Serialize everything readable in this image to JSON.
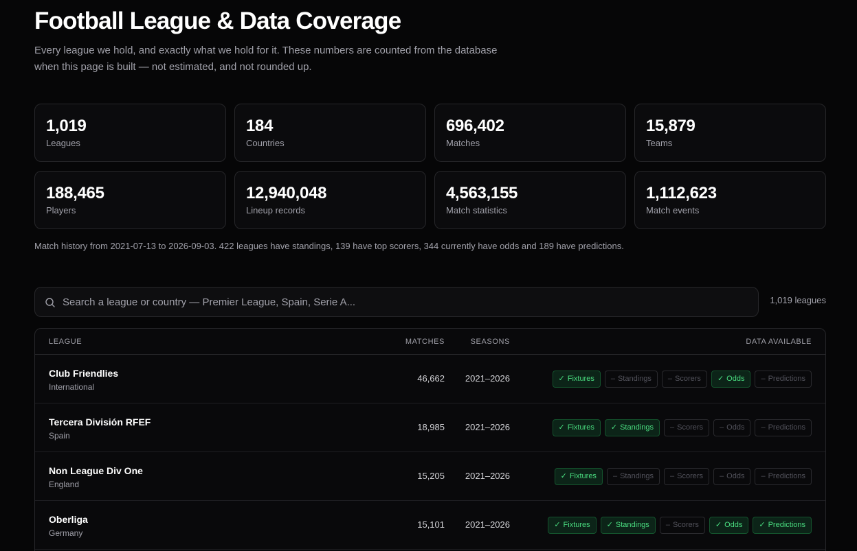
{
  "header": {
    "title": "Football League & Data Coverage",
    "subtitle": "Every league we hold, and exactly what we hold for it. These numbers are counted from the database when this page is built — not estimated, and not rounded up."
  },
  "stats": [
    {
      "value": "1,019",
      "label": "Leagues"
    },
    {
      "value": "184",
      "label": "Countries"
    },
    {
      "value": "696,402",
      "label": "Matches"
    },
    {
      "value": "15,879",
      "label": "Teams"
    },
    {
      "value": "188,465",
      "label": "Players"
    },
    {
      "value": "12,940,048",
      "label": "Lineup records"
    },
    {
      "value": "4,563,155",
      "label": "Match statistics"
    },
    {
      "value": "1,112,623",
      "label": "Match events"
    }
  ],
  "summary": "Match history from 2021-07-13 to 2026-09-03. 422 leagues have standings, 139 have top scorers, 344 currently have odds and 189 have predictions.",
  "search": {
    "placeholder": "Search a league or country — Premier League, Spain, Serie A...",
    "value": "",
    "icon": "search-icon",
    "count_label": "1,019 leagues"
  },
  "table": {
    "headers": {
      "league": "League",
      "matches": "Matches",
      "seasons": "Seasons",
      "data": "Data available"
    },
    "badge_labels": [
      "Fixtures",
      "Standings",
      "Scorers",
      "Odds",
      "Predictions"
    ],
    "rows": [
      {
        "name": "Club Friendlies",
        "country": "International",
        "matches": "46,662",
        "seasons": "2021–2026",
        "data": [
          true,
          false,
          false,
          true,
          false
        ]
      },
      {
        "name": "Tercera División RFEF",
        "country": "Spain",
        "matches": "18,985",
        "seasons": "2021–2026",
        "data": [
          true,
          true,
          false,
          false,
          false
        ]
      },
      {
        "name": "Non League Div One",
        "country": "England",
        "matches": "15,205",
        "seasons": "2021–2026",
        "data": [
          true,
          false,
          false,
          false,
          false
        ]
      },
      {
        "name": "Oberliga",
        "country": "Germany",
        "matches": "15,101",
        "seasons": "2021–2026",
        "data": [
          true,
          true,
          false,
          true,
          true
        ]
      }
    ]
  },
  "colors": {
    "background": "#060607",
    "card_border": "#27272a",
    "muted_text": "#a1a1aa",
    "badge_on_text": "#4ade80",
    "badge_on_bg": "#0c2418",
    "badge_off_text": "#52525b"
  },
  "icons": {
    "available": "✓",
    "unavailable": "–"
  }
}
